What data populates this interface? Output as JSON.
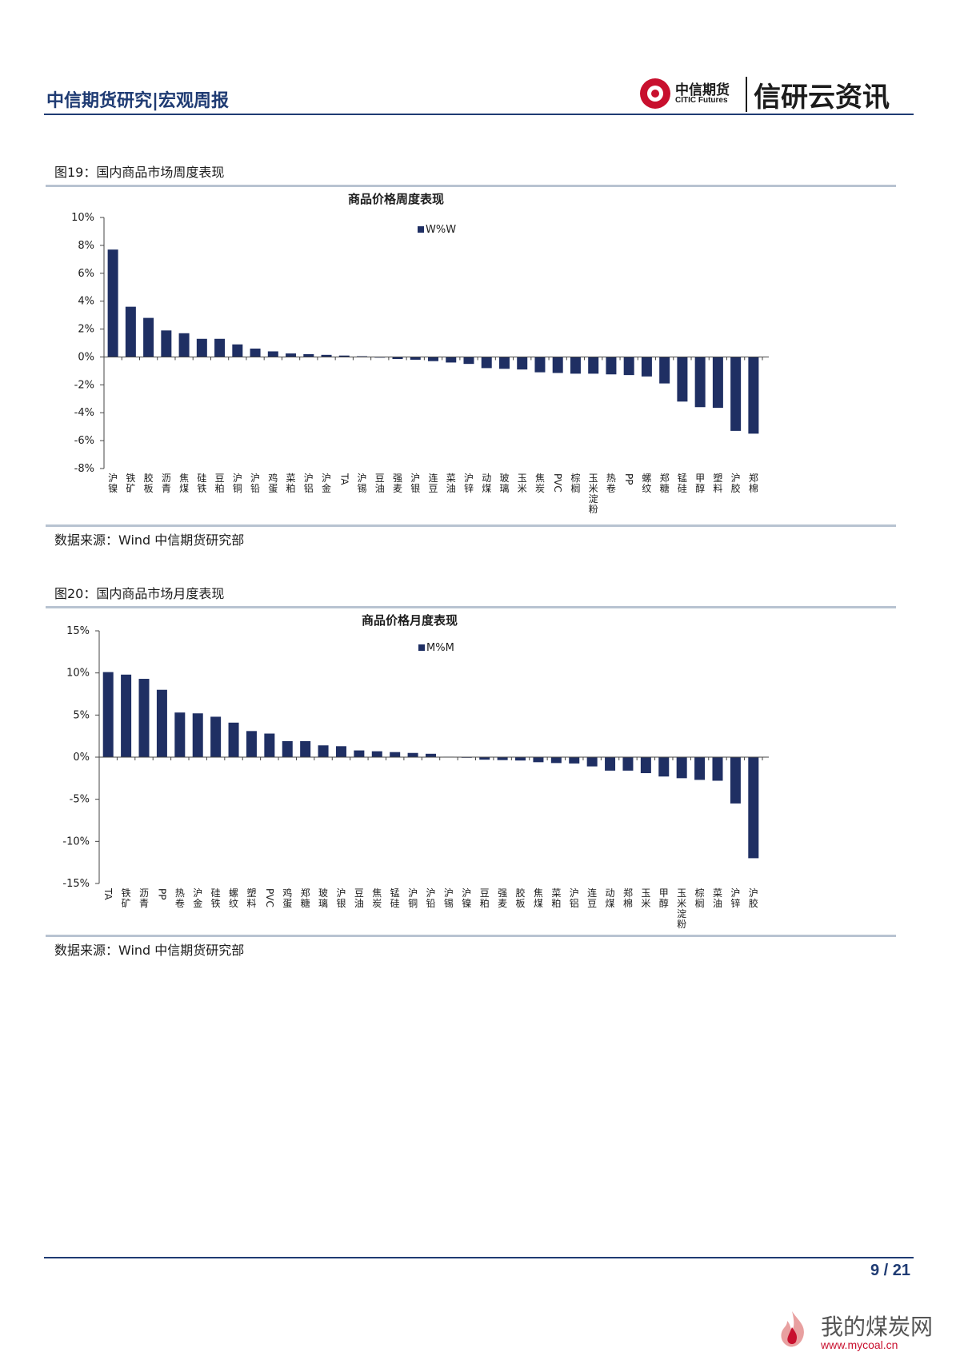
{
  "header": {
    "title": "中信期货研究|宏观周报",
    "logo_cn": "中信期货",
    "logo_en": "CITIC Futures",
    "brand": "信研云资讯"
  },
  "figures": [
    {
      "caption": "图19：国内商品市场周度表现",
      "source": "数据来源：Wind  中信期货研究部"
    },
    {
      "caption": "图20：国内商品市场月度表现",
      "source": "数据来源：Wind  中信期货研究部"
    }
  ],
  "footer": {
    "page": "9 / 21"
  },
  "watermark": {
    "cn": "我的煤炭网",
    "url": "www.mycoal.cn"
  },
  "colors": {
    "bar": "#1f2f63",
    "accent": "#1f3b73",
    "rule": "#b8c3d1"
  },
  "chart_data": [
    {
      "type": "bar",
      "title": "商品价格周度表现",
      "legend": "W%W",
      "legend_position": "top-center",
      "ylim": [
        -8,
        10
      ],
      "yticks": [
        10,
        8,
        6,
        4,
        2,
        0,
        -2,
        -4,
        -6,
        -8
      ],
      "ytick_labels": [
        "10%",
        "8%",
        "6%",
        "4%",
        "2%",
        "0%",
        "-2%",
        "-4%",
        "-6%",
        "-8%"
      ],
      "grid": false,
      "categories": [
        "沪镍",
        "铁矿",
        "胶板",
        "沥青",
        "焦煤",
        "硅铁",
        "豆粕",
        "沪铜",
        "沪铅",
        "鸡蛋",
        "菜粕",
        "沪铝",
        "沪金",
        "TA",
        "沪锡",
        "豆油",
        "强麦",
        "沪银",
        "连豆",
        "菜油",
        "沪锌",
        "动煤",
        "玻璃",
        "玉米",
        "焦炭",
        "PVC",
        "棕榈",
        "玉米淀粉",
        "热卷",
        "PP",
        "螺纹",
        "郑糖",
        "锰硅",
        "甲醇",
        "塑料",
        "沪胶",
        "郑棉"
      ],
      "values": [
        7.7,
        3.6,
        2.8,
        1.9,
        1.7,
        1.3,
        1.3,
        0.9,
        0.6,
        0.4,
        0.25,
        0.2,
        0.15,
        0.1,
        0.05,
        -0.05,
        -0.15,
        -0.2,
        -0.3,
        -0.4,
        -0.5,
        -0.8,
        -0.85,
        -0.9,
        -1.1,
        -1.15,
        -1.2,
        -1.2,
        -1.25,
        -1.3,
        -1.4,
        -1.9,
        -3.2,
        -3.6,
        -3.65,
        -5.3,
        -5.5
      ]
    },
    {
      "type": "bar",
      "title": "商品价格月度表现",
      "legend": "M%M",
      "legend_position": "top-center",
      "ylim": [
        -15,
        15
      ],
      "yticks": [
        15,
        10,
        5,
        0,
        -5,
        -10,
        -15
      ],
      "ytick_labels": [
        "15%",
        "10%",
        "5%",
        "0%",
        "-5%",
        "-10%",
        "-15%"
      ],
      "grid": false,
      "categories": [
        "TA",
        "铁矿",
        "沥青",
        "PP",
        "热卷",
        "沪金",
        "硅铁",
        "螺纹",
        "塑料",
        "PVC",
        "鸡蛋",
        "郑糖",
        "玻璃",
        "沪银",
        "豆油",
        "焦炭",
        "锰硅",
        "沪铜",
        "沪铅",
        "沪锡",
        "沪镍",
        "豆粕",
        "强麦",
        "胶板",
        "焦煤",
        "菜粕",
        "沪铝",
        "连豆",
        "动煤",
        "郑棉",
        "玉米",
        "甲醇",
        "玉米淀粉",
        "棕榈",
        "菜油",
        "沪锌",
        "沪胶"
      ],
      "values": [
        10.1,
        9.8,
        9.3,
        8.0,
        5.3,
        5.2,
        4.8,
        4.1,
        3.1,
        2.8,
        1.9,
        1.9,
        1.4,
        1.3,
        0.8,
        0.7,
        0.6,
        0.5,
        0.4,
        0.05,
        -0.05,
        -0.3,
        -0.35,
        -0.4,
        -0.6,
        -0.7,
        -0.75,
        -1.1,
        -1.6,
        -1.6,
        -1.9,
        -2.3,
        -2.5,
        -2.7,
        -2.8,
        -5.5,
        -12.0
      ]
    }
  ]
}
